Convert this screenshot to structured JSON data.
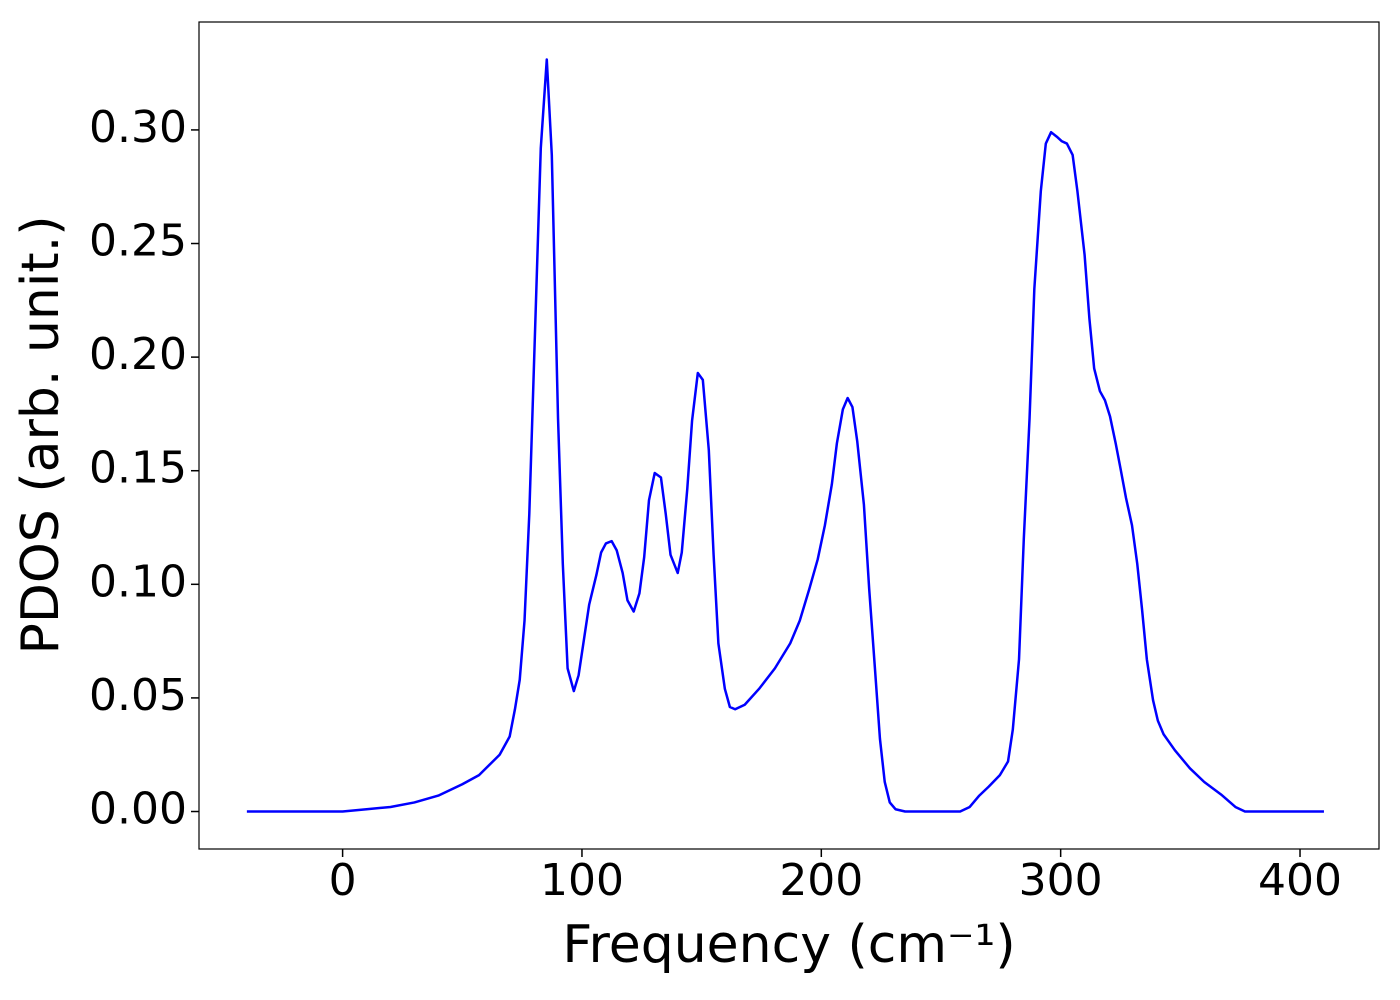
{
  "chart_data": {
    "type": "line",
    "xlabel": "Frequency (cm⁻¹)",
    "ylabel": "PDOS (arb. unit.)",
    "x": [
      -40,
      -20,
      0,
      10,
      20,
      30,
      40,
      50,
      57,
      65.6,
      69.8,
      72,
      74,
      76,
      78,
      82.8,
      85.3,
      87.4,
      90,
      92,
      94,
      96.6,
      98.6,
      103,
      106,
      108,
      110,
      112.4,
      114.5,
      117,
      119,
      121.6,
      124,
      126,
      128,
      130.4,
      133,
      135,
      137,
      140,
      141.7,
      144,
      146,
      148.4,
      150.5,
      153,
      155,
      157,
      159.7,
      161.8,
      164,
      168,
      174,
      180.6,
      187,
      191,
      195,
      198.5,
      201.5,
      204.4,
      206.5,
      209,
      211,
      213,
      215,
      217.8,
      220,
      222.4,
      224.5,
      226.5,
      228.6,
      231,
      235,
      258,
      262,
      266,
      270,
      274.6,
      278,
      280,
      282.6,
      284.6,
      287,
      289,
      291.7,
      293.8,
      296,
      298.4,
      300.5,
      302.6,
      305,
      307,
      310,
      312,
      314,
      316.4,
      318.5,
      320.6,
      323,
      325,
      327.3,
      329.8,
      332,
      334,
      336,
      338.6,
      340.6,
      343,
      347.7,
      354,
      360,
      367,
      373,
      377,
      410
    ],
    "values": [
      0,
      0,
      0,
      0.001,
      0.002,
      0.004,
      0.007,
      0.012,
      0.016,
      0.025,
      0.033,
      0.045,
      0.058,
      0.084,
      0.131,
      0.292,
      0.331,
      0.289,
      0.173,
      0.109,
      0.063,
      0.053,
      0.06,
      0.091,
      0.104,
      0.114,
      0.118,
      0.119,
      0.115,
      0.105,
      0.093,
      0.088,
      0.096,
      0.112,
      0.137,
      0.149,
      0.147,
      0.131,
      0.113,
      0.105,
      0.114,
      0.142,
      0.172,
      0.193,
      0.19,
      0.159,
      0.113,
      0.074,
      0.054,
      0.046,
      0.045,
      0.047,
      0.054,
      0.063,
      0.074,
      0.084,
      0.098,
      0.111,
      0.126,
      0.144,
      0.162,
      0.177,
      0.182,
      0.178,
      0.163,
      0.135,
      0.098,
      0.063,
      0.032,
      0.013,
      0.004,
      0.001,
      0,
      0,
      0.002,
      0.007,
      0.011,
      0.016,
      0.022,
      0.036,
      0.067,
      0.12,
      0.173,
      0.23,
      0.273,
      0.294,
      0.299,
      0.297,
      0.295,
      0.294,
      0.289,
      0.273,
      0.245,
      0.217,
      0.195,
      0.185,
      0.181,
      0.174,
      0.162,
      0.151,
      0.138,
      0.126,
      0.109,
      0.089,
      0.067,
      0.049,
      0.04,
      0.034,
      0.027,
      0.019,
      0.013,
      0.0075,
      0.002,
      0,
      0
    ],
    "color": "#0000ff",
    "xlim": [
      -60,
      433
    ],
    "ylim": [
      -0.0165,
      0.3475
    ],
    "xticks": [
      0,
      100,
      200,
      300,
      400
    ],
    "yticks": [
      {
        "value": 0,
        "label": "0.00"
      },
      0.05,
      {
        "value": 0.1,
        "label": "0.10"
      },
      0.15,
      {
        "value": 0.2,
        "label": "0.20"
      },
      0.25,
      {
        "value": 0.3,
        "label": "0.30"
      }
    ],
    "grid": false
  }
}
